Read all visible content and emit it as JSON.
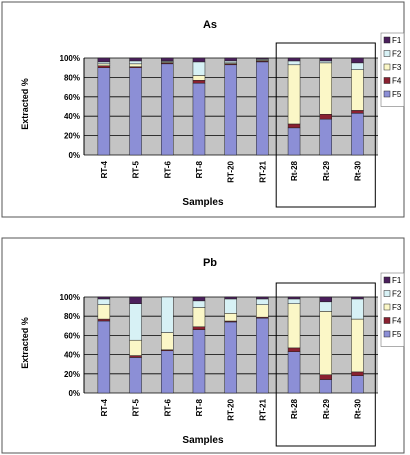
{
  "figure": {
    "colors": {
      "F1": "#4b1f5c",
      "F2": "#d7f1f5",
      "F3": "#fbf7c7",
      "F4": "#8a2030",
      "F5": "#8c8fd6",
      "plot_bg": "#c4c4c4"
    },
    "highlight_note": "Rt-28, Rt-29, Rt-30 enclosed by a rectangle in both panels"
  },
  "chart_data": [
    {
      "type": "bar",
      "stacked": true,
      "percent": true,
      "title": "As",
      "xlabel": "Samples",
      "ylabel": "Extracted %",
      "ylim": [
        0,
        100
      ],
      "yticks": [
        "0%",
        "20%",
        "40%",
        "60%",
        "80%",
        "100%"
      ],
      "grid": true,
      "legend_position": "right",
      "categories": [
        "RT-4",
        "RT-5",
        "RT-6",
        "RT-8",
        "RT-20",
        "RT-21",
        "Rt-28",
        "Rt-29",
        "Rt-30"
      ],
      "series": [
        {
          "name": "F5",
          "values": [
            90,
            90,
            94,
            74,
            93,
            96,
            28,
            37,
            43
          ]
        },
        {
          "name": "F4",
          "values": [
            2,
            1,
            1,
            3,
            1,
            1,
            4,
            5,
            3
          ]
        },
        {
          "name": "F3",
          "values": [
            2,
            3,
            1,
            5,
            1,
            1,
            61,
            53,
            42
          ]
        },
        {
          "name": "F2",
          "values": [
            2,
            3,
            1,
            14,
            2,
            1,
            4,
            2,
            7
          ]
        },
        {
          "name": "F1",
          "values": [
            4,
            3,
            3,
            4,
            3,
            1,
            3,
            3,
            5
          ]
        }
      ]
    },
    {
      "type": "bar",
      "stacked": true,
      "percent": true,
      "title": "Pb",
      "xlabel": "Samples",
      "ylabel": "Extracted %",
      "ylim": [
        0,
        100
      ],
      "yticks": [
        "0%",
        "20%",
        "40%",
        "60%",
        "80%",
        "100%"
      ],
      "grid": true,
      "legend_position": "right",
      "categories": [
        "RT-4",
        "RT-5",
        "RT-6",
        "RT-8",
        "RT-20",
        "RT-21",
        "Rt-28",
        "Rt-29",
        "Rt-30"
      ],
      "series": [
        {
          "name": "F5",
          "values": [
            75,
            37,
            44,
            66,
            74,
            78,
            43,
            14,
            18
          ]
        },
        {
          "name": "F4",
          "values": [
            2,
            2,
            1,
            3,
            1,
            1,
            4,
            5,
            4
          ]
        },
        {
          "name": "F3",
          "values": [
            15,
            16,
            18,
            20,
            8,
            13,
            46,
            66,
            55
          ]
        },
        {
          "name": "F2",
          "values": [
            6,
            38,
            37,
            7,
            15,
            6,
            5,
            10,
            21
          ]
        },
        {
          "name": "F1",
          "values": [
            2,
            7,
            0,
            4,
            2,
            2,
            2,
            5,
            2
          ]
        }
      ]
    }
  ]
}
